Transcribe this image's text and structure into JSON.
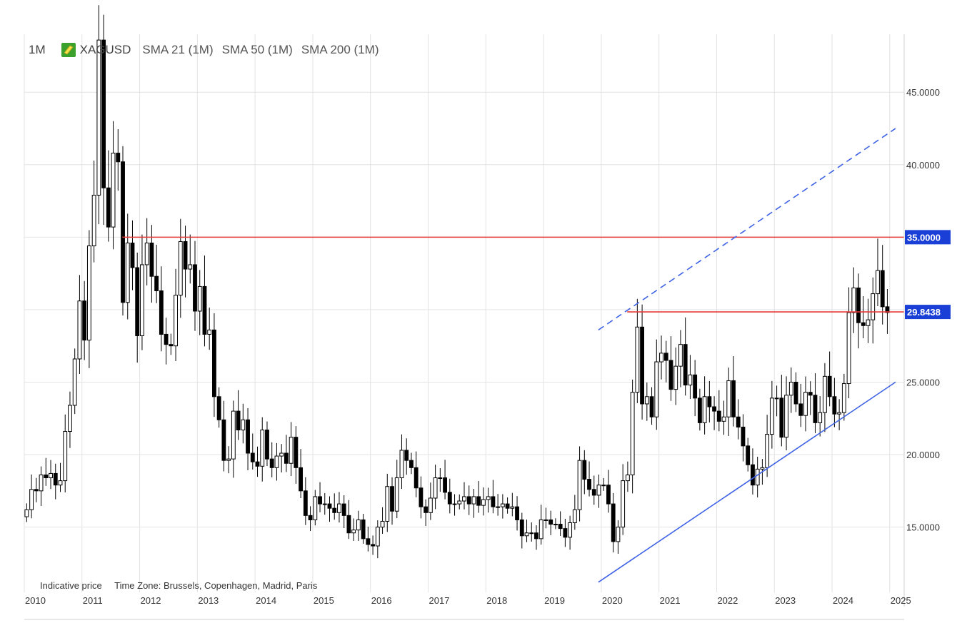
{
  "header": {
    "timeframe": "1M",
    "symbol": "XAGUSD",
    "indicators": [
      "SMA 21 (1M)",
      "SMA 50 (1M)",
      "SMA 200 (1M)"
    ]
  },
  "footer": {
    "indicative": "Indicative price",
    "timezone": "Time Zone: Brussels, Copenhagen, Madrid, Paris"
  },
  "colors": {
    "up_candle": "#ffffff",
    "down_candle": "#000000",
    "resistance_line": "#e53935",
    "trend_line": "#3f63e6",
    "price_badge": "#1a3fd6",
    "grid": "#e3e3e3"
  },
  "chart_data": {
    "type": "candlestick",
    "x_tick_labels": [
      "2010",
      "2011",
      "2012",
      "2013",
      "2014",
      "2015",
      "2016",
      "2017",
      "2018",
      "2019",
      "2020",
      "2021",
      "2022",
      "2023",
      "2024",
      "2025"
    ],
    "y_tick_labels": [
      "15.0000",
      "20.0000",
      "25.0000",
      "40.0000",
      "45.0000"
    ],
    "ylim": [
      10.5,
      49
    ],
    "horizontal_lines": [
      {
        "value": 35.0,
        "label": "35.0000",
        "from": 2011.7
      },
      {
        "value": 29.8438,
        "label": "29.8438",
        "from": 2020.45
      }
    ],
    "trend_lines": [
      {
        "style": "solid",
        "from": [
          2019.95,
          11.2
        ],
        "to": [
          2025.1,
          25.0
        ]
      },
      {
        "style": "dashed",
        "from": [
          2019.95,
          28.6
        ],
        "to": [
          2025.1,
          42.5
        ]
      }
    ],
    "grid": true,
    "monthly_closes": [
      16.2,
      17.6,
      17.5,
      18.6,
      18.4,
      18.7,
      17.9,
      18.2,
      21.6,
      23.4,
      26.6,
      30.6,
      27.9,
      34.4,
      37.9,
      48.6,
      38.4,
      35.7,
      40.8,
      40.2,
      30.5,
      34.6,
      32.9,
      28.2,
      33.1,
      34.6,
      32.3,
      31.3,
      28.3,
      27.6,
      27.5,
      31.0,
      34.7,
      32.8,
      33.1,
      29.9,
      31.6,
      28.3,
      28.6,
      24.0,
      22.4,
      19.6,
      19.7,
      23.0,
      21.7,
      22.4,
      20.1,
      19.5,
      19.2,
      21.7,
      19.7,
      19.1,
      19.9,
      20.1,
      19.4,
      21.2,
      19.1,
      17.5,
      15.8,
      15.5,
      17.1,
      16.6,
      16.6,
      16.3,
      16.0,
      16.6,
      15.8,
      14.6,
      14.8,
      15.5,
      14.2,
      13.8,
      13.7,
      15.0,
      15.4,
      17.8,
      16.1,
      18.4,
      20.3,
      19.6,
      19.1,
      17.7,
      16.4,
      16.0,
      17.0,
      18.4,
      18.4,
      17.4,
      16.6,
      16.6,
      16.8,
      17.1,
      16.6,
      17.1,
      16.5,
      16.9,
      17.1,
      16.4,
      16.4,
      16.6,
      16.3,
      16.4,
      15.5,
      14.4,
      14.6,
      14.6,
      14.2,
      15.5,
      15.5,
      15.2,
      15.2,
      14.9,
      14.3,
      15.3,
      16.2,
      19.6,
      18.3,
      17.6,
      17.2,
      17.9,
      17.9,
      16.6,
      14.0,
      15.0,
      18.2,
      18.6,
      24.3,
      28.8,
      23.5,
      24.0,
      22.6,
      26.4,
      27.0,
      26.5,
      24.5,
      26.1,
      27.6,
      24.8,
      25.5,
      23.9,
      22.2,
      24.0,
      23.3,
      23.0,
      22.3,
      22.6,
      25.1,
      22.6,
      21.9,
      20.6,
      19.3,
      17.9,
      19.0,
      19.1,
      21.4,
      23.9,
      23.9,
      21.2,
      24.1,
      25.0,
      23.5,
      22.7,
      24.3,
      24.1,
      22.2,
      22.9,
      25.4,
      24.0,
      22.8,
      22.9,
      24.9,
      29.8,
      31.5,
      29.1,
      28.9,
      29.3,
      31.1,
      32.7,
      30.2,
      29.8
    ]
  }
}
